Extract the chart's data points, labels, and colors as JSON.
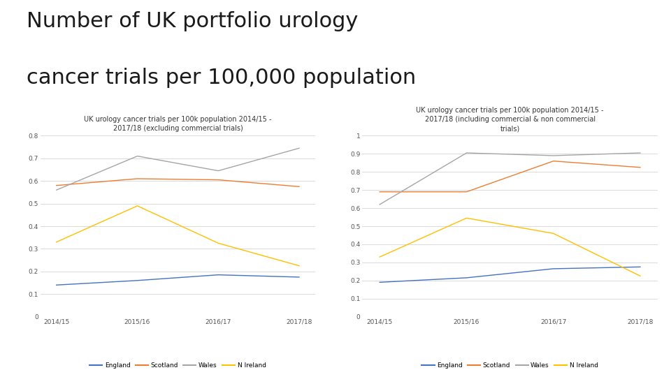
{
  "title_line1": "Number of UK portfolio urology",
  "title_line2": "cancer trials per 100,000 population",
  "title_fontsize": 22,
  "background_color": "#ffffff",
  "chart1_title": "UK urology cancer trials per 100k population 2014/15 -\n2017/18 (excluding commercial trials)",
  "chart2_title": "UK urology cancer trials per 100k population 2014/15 -\n2017/18 (including commercial & non commercial\ntrials)",
  "x_labels": [
    "2014/15",
    "2015/16",
    "2016/17",
    "2017/18"
  ],
  "chart1": {
    "England": [
      0.14,
      0.16,
      0.185,
      0.175
    ],
    "Scotland": [
      0.58,
      0.61,
      0.605,
      0.575
    ],
    "Wales": [
      0.56,
      0.71,
      0.645,
      0.745
    ],
    "N Ireland": [
      0.33,
      0.49,
      0.325,
      0.225
    ]
  },
  "chart1_ylim": [
    0,
    0.8
  ],
  "chart1_yticks": [
    0,
    0.1,
    0.2,
    0.3,
    0.4,
    0.5,
    0.6,
    0.7,
    0.8
  ],
  "chart2": {
    "England": [
      0.19,
      0.215,
      0.265,
      0.275
    ],
    "Scotland": [
      0.69,
      0.69,
      0.86,
      0.825
    ],
    "Wales": [
      0.62,
      0.905,
      0.89,
      0.905
    ],
    "N Ireland": [
      0.33,
      0.545,
      0.46,
      0.225
    ]
  },
  "chart2_ylim": [
    0,
    1.0
  ],
  "chart2_yticks": [
    0,
    0.1,
    0.2,
    0.3,
    0.4,
    0.5,
    0.6,
    0.7,
    0.8,
    0.9,
    1.0
  ],
  "colors": {
    "England": "#4472c4",
    "Scotland": "#ed7d31",
    "Wales": "#a5a5a5",
    "N Ireland": "#ffc000"
  },
  "subtitle_fontsize": 7.0,
  "axis_label_fontsize": 6.5,
  "legend_fontsize": 6.5
}
